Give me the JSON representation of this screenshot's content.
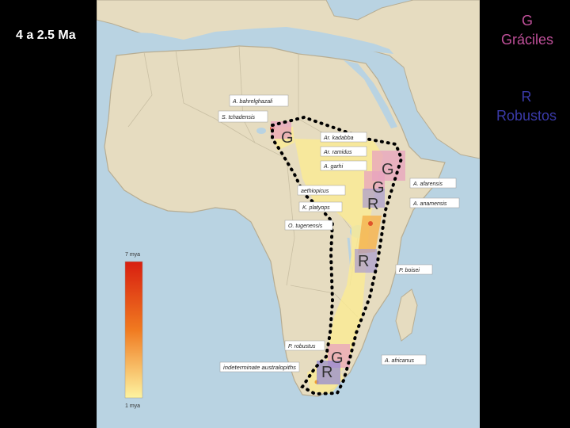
{
  "header": {
    "title": "4 a 2.5 Ma"
  },
  "legend": {
    "gracile_letter": "G",
    "gracile_label": "Gráciles",
    "robust_letter": "R",
    "robust_label": "Robustos"
  },
  "map": {
    "species_labels": [
      "A. bahrelghazali",
      "S. tchadensis",
      "Ar. kadabba",
      "Ar. ramidus",
      "A. garhi",
      "aethiopicus",
      "K. platyops",
      "O. tugenensis",
      "A. afarensis",
      "A. anamensis",
      "P. boisei",
      "P. robustus",
      "A. africanus",
      "indeterminate australopiths"
    ],
    "time_scale": {
      "top_label": "7 mya",
      "bottom_label": "1 mya"
    },
    "markers": {
      "gracile": "G",
      "robust": "R"
    }
  },
  "colors": {
    "gracile": "#c0509a",
    "robust": "#3a3aa8",
    "land": "#e6dcc0",
    "sea": "#b9d3e2"
  }
}
